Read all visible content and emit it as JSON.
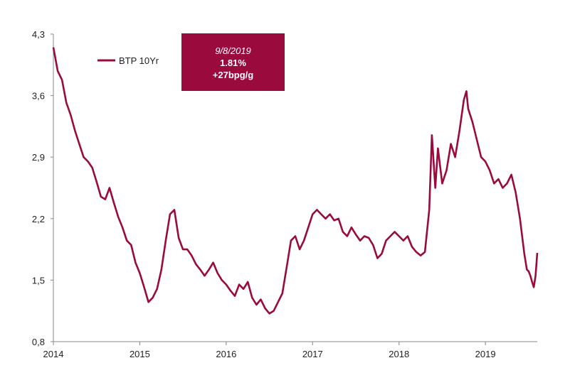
{
  "colors": {
    "line": "#9b0a3c",
    "callout_bg": "#9b0a3c",
    "axis": "#888888"
  },
  "chart_data": {
    "type": "line",
    "title": "",
    "xlabel": "",
    "ylabel": "",
    "ylim": [
      0.8,
      4.3
    ],
    "y_ticks": [
      "4,3",
      "3,6",
      "2,9",
      "2,2",
      "1,5",
      "0,8"
    ],
    "y_tick_values": [
      4.3,
      3.6,
      2.9,
      2.2,
      1.5,
      0.8
    ],
    "x_ticks": [
      "2014",
      "2015",
      "2016",
      "2017",
      "2018",
      "2019"
    ],
    "x_tick_values": [
      2014,
      2015,
      2016,
      2017,
      2018,
      2019
    ],
    "xlim": [
      2014,
      2019.6
    ],
    "grid": false,
    "legend": "top-left",
    "series": [
      {
        "name": "BTP 10Yr",
        "x": [
          2014.0,
          2014.05,
          2014.1,
          2014.15,
          2014.2,
          2014.25,
          2014.3,
          2014.35,
          2014.4,
          2014.45,
          2014.5,
          2014.55,
          2014.6,
          2014.65,
          2014.7,
          2014.75,
          2014.8,
          2014.85,
          2014.9,
          2014.95,
          2015.0,
          2015.05,
          2015.1,
          2015.15,
          2015.2,
          2015.25,
          2015.3,
          2015.35,
          2015.4,
          2015.45,
          2015.5,
          2015.55,
          2015.6,
          2015.65,
          2015.7,
          2015.75,
          2015.8,
          2015.85,
          2015.9,
          2015.95,
          2016.0,
          2016.05,
          2016.1,
          2016.15,
          2016.2,
          2016.25,
          2016.3,
          2016.35,
          2016.4,
          2016.45,
          2016.5,
          2016.55,
          2016.6,
          2016.65,
          2016.7,
          2016.75,
          2016.8,
          2016.85,
          2016.9,
          2016.95,
          2017.0,
          2017.05,
          2017.1,
          2017.15,
          2017.2,
          2017.25,
          2017.3,
          2017.35,
          2017.4,
          2017.45,
          2017.5,
          2017.55,
          2017.6,
          2017.65,
          2017.7,
          2017.75,
          2017.8,
          2017.85,
          2017.9,
          2017.95,
          2018.0,
          2018.05,
          2018.1,
          2018.15,
          2018.2,
          2018.25,
          2018.3,
          2018.35,
          2018.38,
          2018.4,
          2018.42,
          2018.45,
          2018.5,
          2018.55,
          2018.6,
          2018.65,
          2018.7,
          2018.75,
          2018.78,
          2018.8,
          2018.85,
          2018.9,
          2018.95,
          2019.0,
          2019.05,
          2019.1,
          2019.15,
          2019.2,
          2019.25,
          2019.3,
          2019.35,
          2019.4,
          2019.45,
          2019.48,
          2019.5,
          2019.52,
          2019.54,
          2019.56,
          2019.58,
          2019.6
        ],
        "values": [
          4.15,
          3.88,
          3.78,
          3.52,
          3.38,
          3.2,
          3.05,
          2.9,
          2.85,
          2.78,
          2.62,
          2.45,
          2.42,
          2.55,
          2.38,
          2.22,
          2.1,
          1.95,
          1.9,
          1.7,
          1.58,
          1.42,
          1.25,
          1.3,
          1.4,
          1.62,
          1.95,
          2.25,
          2.3,
          1.98,
          1.85,
          1.85,
          1.78,
          1.68,
          1.62,
          1.55,
          1.62,
          1.7,
          1.58,
          1.5,
          1.45,
          1.38,
          1.32,
          1.45,
          1.4,
          1.48,
          1.3,
          1.22,
          1.28,
          1.18,
          1.12,
          1.15,
          1.25,
          1.35,
          1.65,
          1.95,
          2.0,
          1.85,
          1.95,
          2.1,
          2.25,
          2.3,
          2.25,
          2.2,
          2.25,
          2.18,
          2.2,
          2.05,
          2.0,
          2.1,
          2.02,
          1.95,
          2.0,
          1.98,
          1.9,
          1.75,
          1.8,
          1.95,
          2.0,
          2.05,
          2.0,
          1.95,
          2.0,
          1.88,
          1.82,
          1.78,
          1.82,
          2.3,
          3.15,
          2.85,
          2.55,
          3.0,
          2.6,
          2.75,
          3.05,
          2.9,
          3.2,
          3.55,
          3.65,
          3.45,
          3.3,
          3.1,
          2.9,
          2.85,
          2.75,
          2.6,
          2.65,
          2.55,
          2.6,
          2.7,
          2.5,
          2.2,
          1.8,
          1.62,
          1.6,
          1.55,
          1.48,
          1.42,
          1.55,
          1.81
        ]
      }
    ]
  },
  "legend": {
    "label": "BTP 10Yr"
  },
  "callout": {
    "date": "9/8/2019",
    "value": "1.81%",
    "change": "+27bpg/g"
  }
}
